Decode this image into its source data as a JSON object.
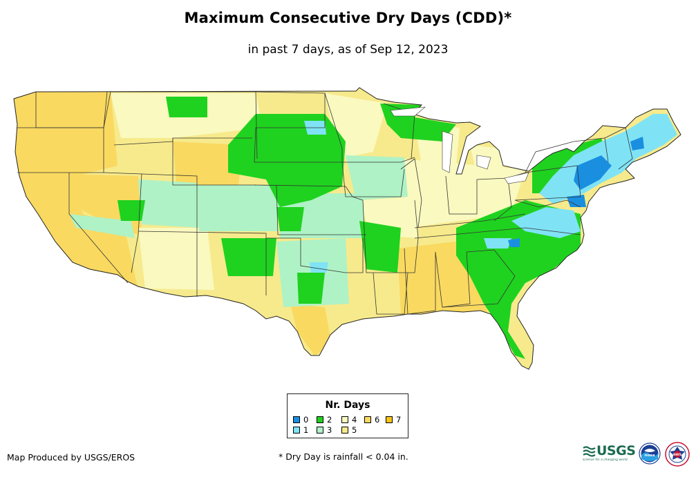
{
  "title": "Maximum Consecutive Dry Days (CDD)*",
  "subtitle": "in past 7 days, as of Sep 12, 2023",
  "legend": {
    "title": "Nr. Days",
    "items": [
      {
        "label": "0",
        "color": "#1a8fe0"
      },
      {
        "label": "1",
        "color": "#7fe3f5"
      },
      {
        "label": "2",
        "color": "#1fd21f"
      },
      {
        "label": "3",
        "color": "#aff2c6"
      },
      {
        "label": "4",
        "color": "#f9f9c0"
      },
      {
        "label": "5",
        "color": "#f7ea8c"
      },
      {
        "label": "6",
        "color": "#f9d960"
      },
      {
        "label": "7",
        "color": "#f8c41a"
      }
    ]
  },
  "producer": "Map Produced by USGS/EROS",
  "footnote": "* Dry Day is rainfall < 0.04 in.",
  "logos": {
    "usgs": "USGS",
    "usgs_tagline": "science for a changing world",
    "noaa": "noaa",
    "nws": "NWS"
  }
}
